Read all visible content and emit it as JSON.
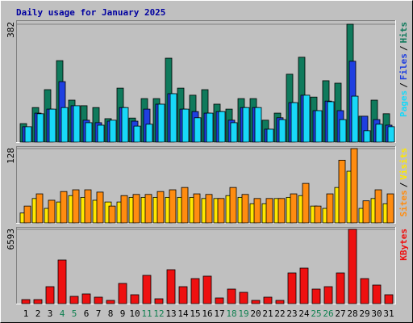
{
  "chart_data": [
    {
      "type": "bar",
      "title": "Daily usage for January 2025",
      "categories": [
        "1",
        "2",
        "3",
        "4",
        "5",
        "6",
        "7",
        "8",
        "9",
        "10",
        "11",
        "12",
        "13",
        "14",
        "15",
        "16",
        "17",
        "18",
        "19",
        "20",
        "21",
        "22",
        "23",
        "24",
        "25",
        "26",
        "27",
        "28",
        "29",
        "30",
        "31"
      ],
      "highlighted_categories": [
        "4",
        "5",
        "11",
        "12",
        "18",
        "19",
        "25",
        "26"
      ],
      "highlight_color": "#108050",
      "ylim": [
        0,
        382
      ],
      "yticks": [
        382
      ],
      "series": [
        {
          "name": "Hits",
          "color": "#0f7a5c",
          "values": [
            60,
            112,
            170,
            264,
            136,
            118,
            112,
            76,
            175,
            78,
            141,
            141,
            272,
            175,
            152,
            170,
            123,
            107,
            141,
            141,
            71,
            94,
            220,
            275,
            146,
            199,
            191,
            382,
            84,
            136,
            92
          ]
        },
        {
          "name": "Files",
          "color": "#1f3fe0",
          "values": [
            50,
            94,
            107,
            196,
            118,
            71,
            63,
            68,
            112,
            68,
            107,
            123,
            157,
            107,
            99,
            94,
            99,
            71,
            112,
            112,
            42,
            79,
            128,
            152,
            102,
            133,
            102,
            262,
            84,
            73,
            55
          ]
        },
        {
          "name": "Pages",
          "color": "#18d8f8",
          "values": [
            50,
            92,
            107,
            112,
            118,
            63,
            55,
            71,
            112,
            52,
            58,
            123,
            157,
            107,
            79,
            94,
            99,
            63,
            112,
            112,
            42,
            73,
            128,
            152,
            102,
            131,
            73,
            149,
            37,
            58,
            50
          ]
        }
      ]
    },
    {
      "type": "bar",
      "ylim": [
        0,
        128
      ],
      "yticks": [
        128
      ],
      "series": [
        {
          "name": "Visits",
          "color": "#ffe800",
          "values": [
            17,
            42,
            25,
            36,
            47,
            44,
            39,
            36,
            36,
            44,
            44,
            44,
            44,
            44,
            44,
            42,
            42,
            47,
            44,
            33,
            33,
            42,
            44,
            47,
            29,
            25,
            61,
            89,
            25,
            42,
            33
          ]
        },
        {
          "name": "Sites",
          "color": "#ff8c10",
          "values": [
            29,
            50,
            39,
            54,
            57,
            57,
            53,
            29,
            47,
            49,
            49,
            54,
            57,
            61,
            50,
            49,
            42,
            61,
            49,
            42,
            42,
            42,
            50,
            68,
            29,
            50,
            108,
            128,
            38,
            57,
            50
          ]
        }
      ]
    },
    {
      "type": "bar",
      "ylim": [
        0,
        6593
      ],
      "yticks": [
        6593
      ],
      "series": [
        {
          "name": "KBytes",
          "color": "#ee1010",
          "values": [
            358,
            358,
            1505,
            3870,
            645,
            860,
            573,
            287,
            1792,
            788,
            2508,
            430,
            3010,
            1505,
            2222,
            2437,
            502,
            1290,
            1003,
            287,
            573,
            287,
            2723,
            3153,
            1290,
            1505,
            2723,
            6593,
            2222,
            1648,
            788
          ]
        }
      ]
    }
  ],
  "legend_separator": "/"
}
